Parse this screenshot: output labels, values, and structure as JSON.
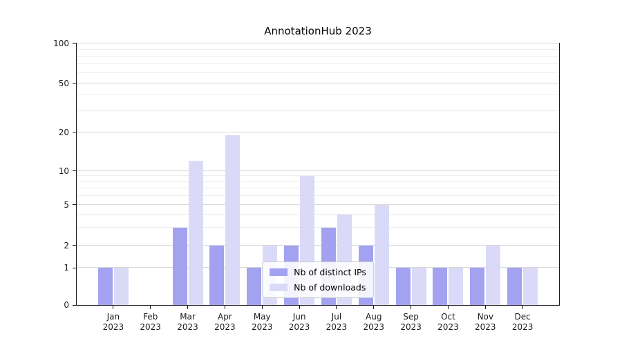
{
  "title": "AnnotationHub 2023",
  "chart_data": {
    "type": "bar",
    "title": "AnnotationHub 2023",
    "categories": [
      "Jan 2023",
      "Feb 2023",
      "Mar 2023",
      "Apr 2023",
      "May 2023",
      "Jun 2023",
      "Jul 2023",
      "Aug 2023",
      "Sep 2023",
      "Oct 2023",
      "Nov 2023",
      "Dec 2023"
    ],
    "series": [
      {
        "name": "Nb of distinct IPs",
        "color": "#a2a2f0",
        "values": [
          1,
          0,
          3,
          2,
          1,
          2,
          3,
          2,
          1,
          1,
          1,
          1
        ]
      },
      {
        "name": "Nb of downloads",
        "color": "#dadaf8",
        "values": [
          1,
          0,
          12,
          19,
          2,
          9,
          4,
          5,
          1,
          1,
          2,
          1
        ]
      }
    ],
    "yscale": "symlog",
    "ylim": [
      0,
      100
    ],
    "yticks": [
      0,
      1,
      2,
      5,
      10,
      20,
      50,
      100
    ],
    "minor_gridline_values": [
      3,
      4,
      6,
      7,
      8,
      9,
      30,
      40,
      60,
      70,
      80,
      90
    ],
    "xlabel": "",
    "ylabel": "",
    "grid": true,
    "legend_position": "lower center"
  },
  "colors": {
    "grid_major": "#d9d9d9",
    "grid_minor": "#ececec",
    "axis": "#1a1a1a",
    "background": "#ffffff"
  }
}
